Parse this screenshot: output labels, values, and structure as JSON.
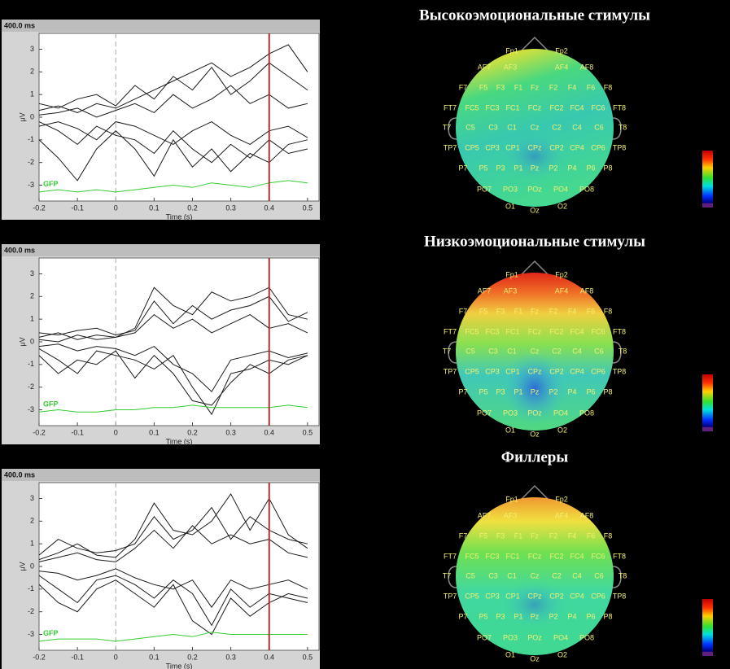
{
  "chart_data": [
    {
      "type": "line",
      "cursor": {
        "value": 0.4,
        "label": "400.0 ms"
      },
      "zero_line": 0,
      "xlabel": "Time (s)",
      "ylabel": "μV",
      "x": [
        -0.2,
        -0.15,
        -0.1,
        -0.05,
        0,
        0.05,
        0.1,
        0.15,
        0.2,
        0.25,
        0.3,
        0.35,
        0.4,
        0.45,
        0.5
      ],
      "xlim": [
        -0.2,
        0.53
      ],
      "ylim": [
        -3.7,
        3.7
      ],
      "xticks": [
        -0.2,
        -0.1,
        0,
        0.1,
        0.2,
        0.3,
        0.4,
        0.5
      ],
      "yticks": [
        -3,
        -2,
        -1,
        0,
        1,
        2,
        3
      ],
      "series": [
        {
          "color": "#1a1a1a",
          "values": [
            0.3,
            0.5,
            0.2,
            0.6,
            0.4,
            0.8,
            1.2,
            1.6,
            2.0,
            2.4,
            1.8,
            2.2,
            2.8,
            3.2,
            2.0
          ]
        },
        {
          "color": "#1a1a1a",
          "values": [
            -0.2,
            -0.6,
            -1.2,
            -0.4,
            -0.8,
            -1.0,
            -1.6,
            -0.6,
            -1.4,
            -2.0,
            -1.2,
            -1.8,
            -1.0,
            -1.6,
            -1.4
          ]
        },
        {
          "color": "#1a1a1a",
          "values": [
            0.1,
            0.2,
            0.4,
            0.0,
            0.3,
            0.6,
            0.2,
            1.0,
            0.4,
            0.8,
            1.4,
            0.6,
            1.0,
            0.4,
            0.6
          ]
        },
        {
          "color": "#1a1a1a",
          "values": [
            -0.4,
            -0.2,
            -0.5,
            -1.0,
            -0.2,
            -0.4,
            -0.8,
            -1.2,
            -0.6,
            -0.2,
            -0.8,
            -1.2,
            -0.6,
            -0.4,
            -0.9
          ]
        },
        {
          "color": "#1a1a1a",
          "values": [
            0.6,
            0.4,
            0.8,
            1.0,
            0.5,
            1.4,
            0.8,
            1.8,
            1.2,
            2.2,
            1.0,
            1.6,
            2.4,
            1.8,
            1.2
          ]
        },
        {
          "color": "#1a1a1a",
          "values": [
            -1.0,
            -1.8,
            -2.8,
            -1.4,
            -0.6,
            -1.4,
            -2.6,
            -1.0,
            -2.2,
            -1.4,
            -2.4,
            -1.6,
            -2.0,
            -1.2,
            -1.0
          ]
        },
        {
          "name": "GFP",
          "color": "#33cc33",
          "values": [
            -3.3,
            -3.2,
            -3.3,
            -3.2,
            -3.3,
            -3.2,
            -3.1,
            -3.0,
            -3.1,
            -2.9,
            -3.0,
            -3.1,
            -2.9,
            -2.8,
            -2.9
          ]
        }
      ]
    },
    {
      "type": "line",
      "cursor": {
        "value": 0.4,
        "label": "400.0 ms"
      },
      "zero_line": 0,
      "xlabel": "Time (s)",
      "ylabel": "μV",
      "x": [
        -0.2,
        -0.15,
        -0.1,
        -0.05,
        0,
        0.05,
        0.1,
        0.15,
        0.2,
        0.25,
        0.3,
        0.35,
        0.4,
        0.45,
        0.5
      ],
      "xlim": [
        -0.2,
        0.53
      ],
      "ylim": [
        -3.7,
        3.7
      ],
      "xticks": [
        -0.2,
        -0.1,
        0,
        0.1,
        0.2,
        0.3,
        0.4,
        0.5
      ],
      "yticks": [
        -3,
        -2,
        -1,
        0,
        1,
        2,
        3
      ],
      "series": [
        {
          "color": "#1a1a1a",
          "values": [
            0.2,
            0.4,
            0.1,
            0.3,
            0.2,
            0.6,
            2.4,
            1.6,
            1.2,
            2.2,
            1.8,
            2.0,
            2.4,
            1.2,
            1.0
          ]
        },
        {
          "color": "#1a1a1a",
          "values": [
            -0.3,
            -0.8,
            -1.4,
            -0.4,
            -0.6,
            -0.8,
            -1.2,
            -0.6,
            -2.0,
            -3.2,
            -1.4,
            -1.2,
            -0.8,
            -1.0,
            -0.6
          ]
        },
        {
          "color": "#1a1a1a",
          "values": [
            0.1,
            0.0,
            0.3,
            0.1,
            0.2,
            0.4,
            1.2,
            0.6,
            1.0,
            0.4,
            0.8,
            1.2,
            0.6,
            0.8,
            0.4
          ]
        },
        {
          "color": "#1a1a1a",
          "values": [
            -0.2,
            -0.1,
            -0.4,
            -0.2,
            -0.3,
            -0.6,
            -0.2,
            -1.0,
            -1.4,
            -2.2,
            -0.8,
            -0.6,
            -0.4,
            -0.7,
            -0.5
          ]
        },
        {
          "color": "#1a1a1a",
          "values": [
            0.4,
            0.3,
            0.5,
            0.6,
            0.3,
            0.5,
            1.8,
            0.8,
            1.6,
            1.0,
            1.4,
            1.6,
            2.0,
            0.9,
            1.3
          ]
        },
        {
          "color": "#1a1a1a",
          "values": [
            -0.6,
            -1.4,
            -0.8,
            -1.0,
            -0.4,
            -1.6,
            -0.6,
            -1.4,
            -2.6,
            -2.8,
            -1.8,
            -1.0,
            -1.4,
            -0.8,
            -0.6
          ]
        },
        {
          "name": "GFP",
          "color": "#33cc33",
          "values": [
            -3.1,
            -3.0,
            -3.1,
            -3.1,
            -3.0,
            -3.0,
            -2.9,
            -2.9,
            -2.8,
            -2.9,
            -2.9,
            -2.9,
            -2.9,
            -2.8,
            -2.9
          ]
        }
      ]
    },
    {
      "type": "line",
      "cursor": {
        "value": 0.4,
        "label": "400.0 ms"
      },
      "zero_line": 0,
      "xlabel": "Time (s)",
      "ylabel": "μV",
      "x": [
        -0.2,
        -0.15,
        -0.1,
        -0.05,
        0,
        0.05,
        0.1,
        0.15,
        0.2,
        0.25,
        0.3,
        0.35,
        0.4,
        0.45,
        0.5
      ],
      "xlim": [
        -0.2,
        0.53
      ],
      "ylim": [
        -3.7,
        3.7
      ],
      "xticks": [
        -0.2,
        -0.1,
        0,
        0.1,
        0.2,
        0.3,
        0.4,
        0.5
      ],
      "yticks": [
        -3,
        -2,
        -1,
        0,
        1,
        2,
        3
      ],
      "series": [
        {
          "color": "#1a1a1a",
          "values": [
            0.3,
            0.6,
            1.0,
            0.5,
            0.4,
            1.2,
            2.8,
            1.6,
            1.4,
            2.0,
            3.2,
            1.6,
            3.0,
            1.4,
            0.8
          ]
        },
        {
          "color": "#1a1a1a",
          "values": [
            -0.4,
            -1.0,
            -1.6,
            -0.6,
            -0.4,
            -0.8,
            -1.4,
            -0.6,
            -1.2,
            -2.6,
            -1.0,
            -1.8,
            -1.2,
            -1.4,
            -1.6
          ]
        },
        {
          "color": "#1a1a1a",
          "values": [
            0.2,
            0.4,
            0.6,
            0.3,
            0.2,
            0.8,
            1.6,
            0.8,
            1.8,
            1.0,
            1.4,
            1.0,
            1.2,
            0.6,
            0.4
          ]
        },
        {
          "color": "#1a1a1a",
          "values": [
            -0.2,
            -0.3,
            -0.6,
            -0.4,
            -0.1,
            -0.5,
            -0.8,
            -1.0,
            -0.6,
            -1.8,
            -0.6,
            -1.0,
            -0.8,
            -0.6,
            -1.0
          ]
        },
        {
          "color": "#1a1a1a",
          "values": [
            0.5,
            1.2,
            0.8,
            0.6,
            0.7,
            1.0,
            2.2,
            1.2,
            1.6,
            2.6,
            1.2,
            2.2,
            1.6,
            1.2,
            1.0
          ]
        },
        {
          "color": "#1a1a1a",
          "values": [
            -0.8,
            -1.6,
            -2.0,
            -1.0,
            -0.6,
            -1.2,
            -1.8,
            -0.8,
            -2.4,
            -3.0,
            -1.4,
            -2.2,
            -1.6,
            -1.2,
            -1.4
          ]
        },
        {
          "name": "GFP",
          "color": "#33cc33",
          "values": [
            -3.3,
            -3.2,
            -3.2,
            -3.2,
            -3.3,
            -3.2,
            -3.1,
            -3.0,
            -3.1,
            -2.9,
            -3.0,
            -3.0,
            -3.0,
            -3.0,
            -3.0
          ]
        }
      ]
    }
  ],
  "topomaps": [
    {
      "title": "Высокоэмоциональные стимулы"
    },
    {
      "title": "Низкоэмоциональные стимулы"
    },
    {
      "title": "Филлеры"
    }
  ],
  "electrodes": [
    [
      "Fp1",
      "Fp2"
    ],
    [
      "AF7",
      "AF3",
      "AF4",
      "AF8"
    ],
    [
      "F7",
      "F5",
      "F3",
      "F1",
      "Fz",
      "F2",
      "F4",
      "F6",
      "F8"
    ],
    [
      "FT7",
      "FC5",
      "FC3",
      "FC1",
      "FCz",
      "FC2",
      "FC4",
      "FC6",
      "FT8"
    ],
    [
      "T7",
      "C5",
      "C3",
      "C1",
      "Cz",
      "C2",
      "C4",
      "C6",
      "T8"
    ],
    [
      "TP7",
      "CP5",
      "CP3",
      "CP1",
      "CPz",
      "CP2",
      "CP4",
      "CP6",
      "TP8"
    ],
    [
      "P7",
      "P5",
      "P3",
      "P1",
      "Pz",
      "P2",
      "P4",
      "P6",
      "P8"
    ],
    [
      "PO7",
      "PO3",
      "POz",
      "PO4",
      "PO8"
    ],
    [
      "O1",
      "Oz",
      "O2"
    ]
  ]
}
